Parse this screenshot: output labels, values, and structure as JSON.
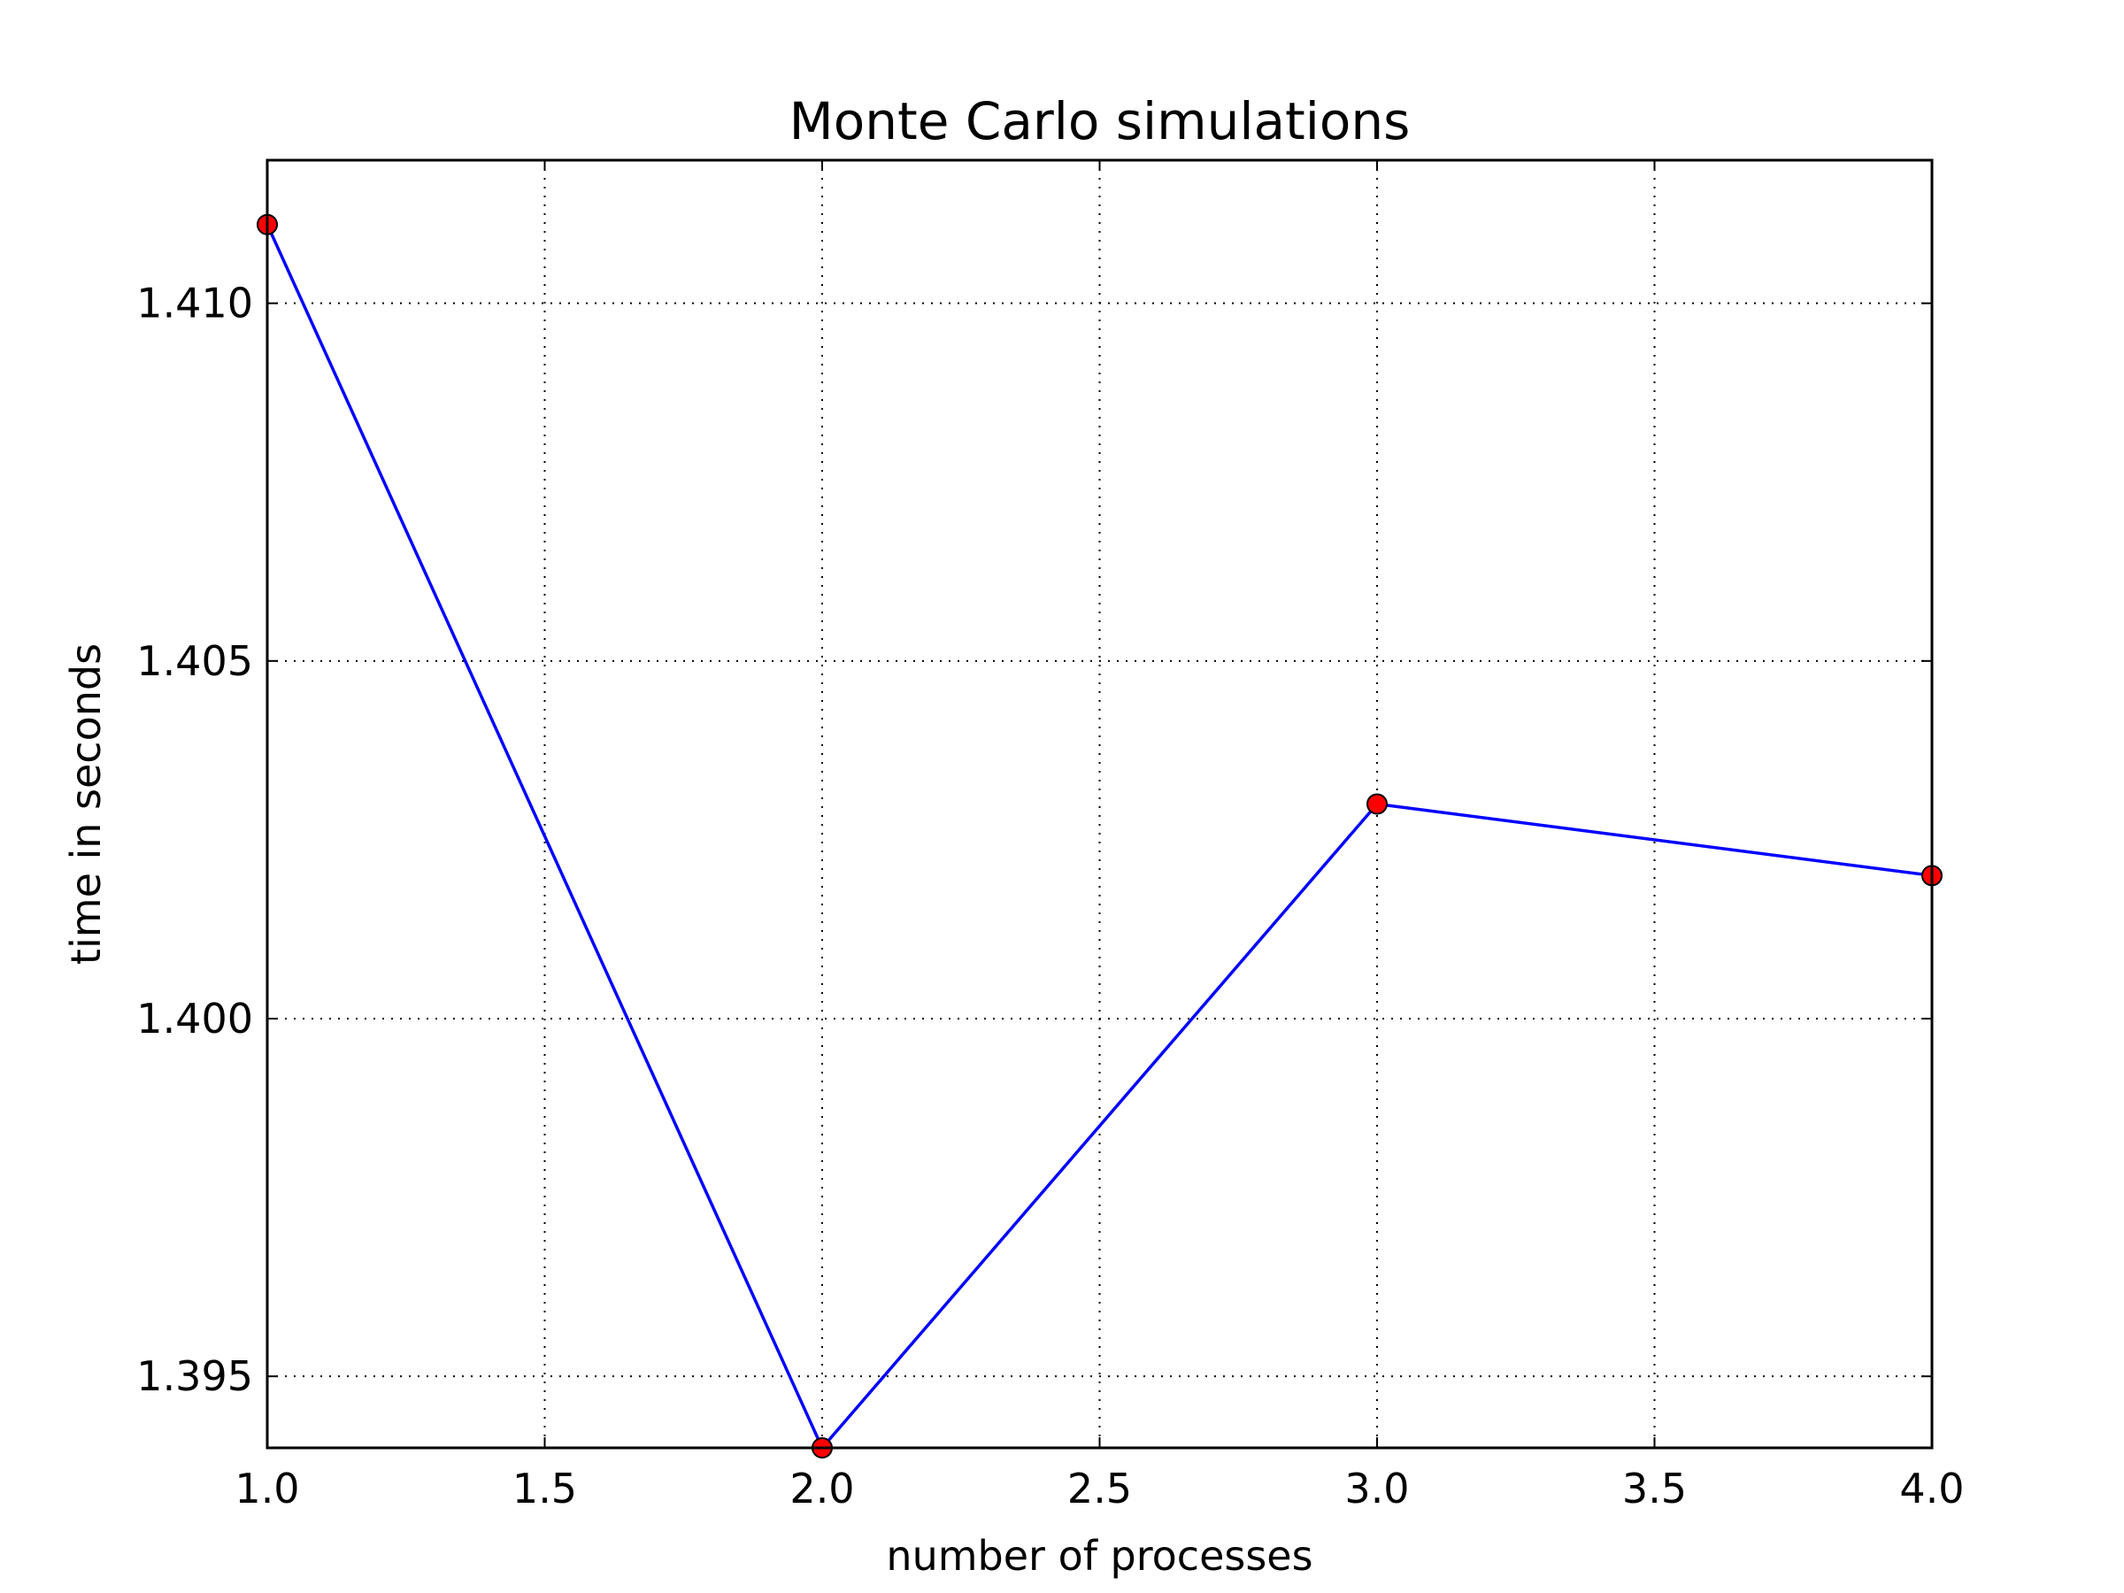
{
  "chart_data": {
    "type": "line",
    "title": "Monte Carlo simulations",
    "xlabel": "number of processes",
    "ylabel": "time in seconds",
    "xlim": [
      1.0,
      4.0
    ],
    "ylim": [
      1.394,
      1.412
    ],
    "x_ticks": [
      1.0,
      1.5,
      2.0,
      2.5,
      3.0,
      3.5,
      4.0
    ],
    "x_tick_labels": [
      "1.0",
      "1.5",
      "2.0",
      "2.5",
      "3.0",
      "3.5",
      "4.0"
    ],
    "y_ticks": [
      1.395,
      1.4,
      1.405,
      1.41
    ],
    "y_tick_labels": [
      "1.395",
      "1.400",
      "1.405",
      "1.410"
    ],
    "grid": true,
    "series": [
      {
        "x": [
          1,
          2,
          3,
          4
        ],
        "y": [
          1.4111,
          1.394,
          1.403,
          1.402
        ],
        "line_color": "#0000ff",
        "marker": "circle",
        "marker_color": "#ff0000"
      }
    ]
  }
}
